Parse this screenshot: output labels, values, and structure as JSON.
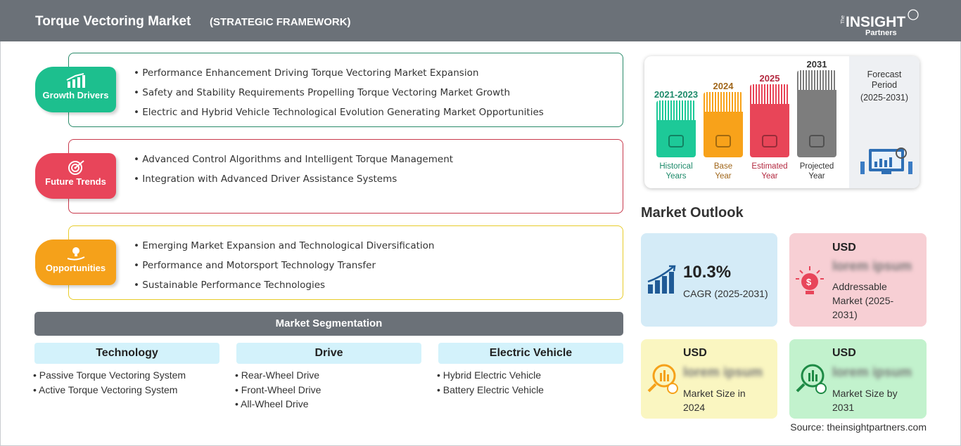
{
  "header": {
    "title": "Torque Vectoring Market",
    "subtitle": "(STRATEGIC FRAMEWORK)",
    "logo": "The INSIGHT Partners"
  },
  "framework": [
    {
      "label": "Growth Drivers",
      "icon": "growth-chart-icon",
      "color": "#1dbf8e",
      "border": "#2a8a6a",
      "items": [
        "Performance Enhancement Driving Torque Vectoring Market Expansion",
        "Safety and Stability Requirements Propelling Torque Vectoring Market Growth",
        "Electric and Hybrid Vehicle Technological Evolution Generating Market Opportunities"
      ]
    },
    {
      "label": "Future Trends",
      "icon": "target-icon",
      "color": "#e8455a",
      "border": "#c8394c",
      "items": [
        "Advanced Control Algorithms and Intelligent Torque Management",
        "Integration with Advanced Driver Assistance Systems"
      ]
    },
    {
      "label": "Opportunities",
      "icon": "lightbulb-hand-icon",
      "color": "#f5a11a",
      "border": "#e8cc2a",
      "items": [
        "Emerging Market Expansion and Technological Diversification",
        "Performance and Motorsport Technology Transfer",
        "Sustainable Performance Technologies"
      ]
    }
  ],
  "segmentation": {
    "title": "Market Segmentation",
    "categories": [
      {
        "name": "Technology",
        "items": [
          "Passive Torque Vectoring System",
          "Active Torque Vectoring System"
        ]
      },
      {
        "name": "Drive",
        "items": [
          "Rear-Wheel Drive",
          "Front-Wheel Drive",
          "All-Wheel Drive"
        ]
      },
      {
        "name": "Electric Vehicle",
        "items": [
          "Hybrid Electric Vehicle",
          "Battery Electric Vehicle"
        ]
      }
    ]
  },
  "timeline": {
    "periods": [
      {
        "year": "2021-2023",
        "caption1": "Historical",
        "caption2": "Years",
        "color": "#1dc998",
        "text": "#1d8a6a",
        "icon": "history-icon"
      },
      {
        "year": "2024",
        "caption1": "Base",
        "caption2": "Year",
        "color": "#f8a21a",
        "text": "#a0661a",
        "icon": "calendar-icon"
      },
      {
        "year": "2025",
        "caption1": "Estimated",
        "caption2": "Year",
        "color": "#e84558",
        "text": "#b3283f",
        "icon": "analytics-icon"
      },
      {
        "year": "2031",
        "caption1": "Projected",
        "caption2": "Year",
        "color": "#7d7d7d",
        "text": "#333",
        "icon": "presentation-icon"
      }
    ],
    "forecast": {
      "line1": "Forecast",
      "line2": "Period",
      "line3": "(2025-2031)"
    }
  },
  "outlook": {
    "title": "Market Outlook",
    "cagr": {
      "value": "10.3%",
      "label": "CAGR (2025-2031)",
      "bg": "#d4ebf7"
    },
    "addressable": {
      "currency": "USD",
      "value": "lorem ipsum",
      "label1": "Addressable",
      "label2": "Market (2025-",
      "label3": "2031)",
      "bg": "#f7cfd4"
    },
    "size2024": {
      "currency": "USD",
      "value": "lorem ipsum",
      "label1": "Market Size in",
      "label2": "2024",
      "bg": "#faf6c1"
    },
    "size2031": {
      "currency": "USD",
      "value": "lorem ipsum",
      "label1": "Market Size by",
      "label2": "2031",
      "bg": "#c2f2cd"
    },
    "source": "Source: theinsightpartners.com"
  }
}
